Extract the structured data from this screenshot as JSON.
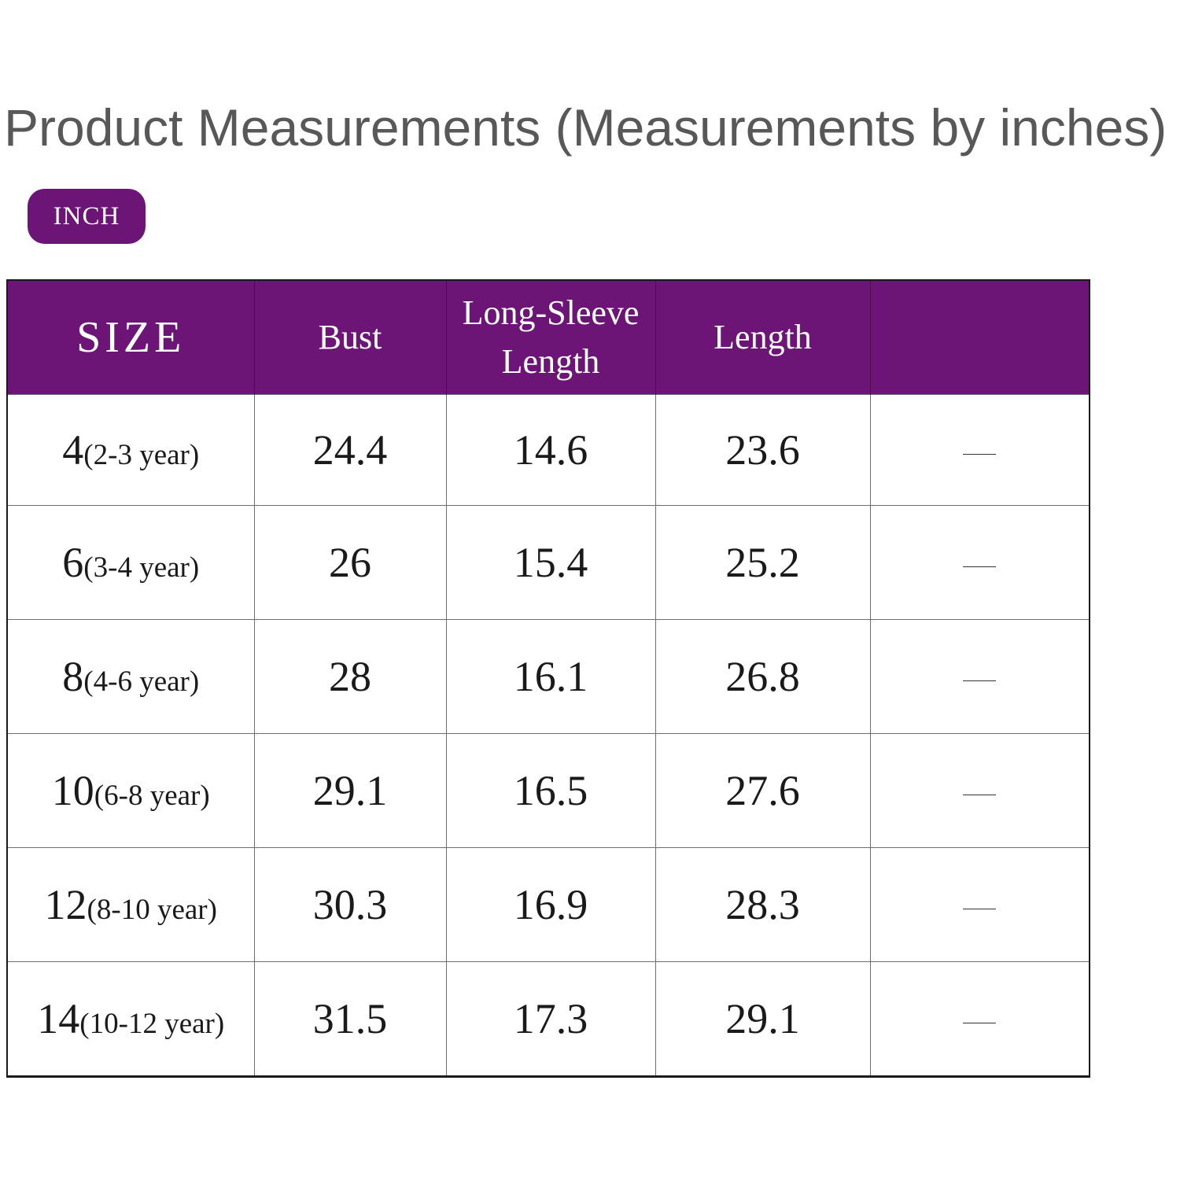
{
  "title": "Product Measurements (Measurements by inches)",
  "unit_badge": "INCH",
  "colors": {
    "header_bg": "#6c1577",
    "title_text": "#585858"
  },
  "table": {
    "headers": [
      "SIZE",
      "Bust",
      "Long-Sleeve\nLength",
      "Length",
      ""
    ],
    "rows": [
      {
        "size": "4",
        "age": "(2-3 year)",
        "bust": "24.4",
        "sleeve": "14.6",
        "length": "23.6",
        "extra": "—"
      },
      {
        "size": "6",
        "age": "(3-4 year)",
        "bust": "26",
        "sleeve": "15.4",
        "length": "25.2",
        "extra": "—"
      },
      {
        "size": "8",
        "age": "(4-6 year)",
        "bust": "28",
        "sleeve": "16.1",
        "length": "26.8",
        "extra": "—"
      },
      {
        "size": "10",
        "age": "(6-8 year)",
        "bust": "29.1",
        "sleeve": "16.5",
        "length": "27.6",
        "extra": "—"
      },
      {
        "size": "12",
        "age": "(8-10 year)",
        "bust": "30.3",
        "sleeve": "16.9",
        "length": "28.3",
        "extra": "—"
      },
      {
        "size": "14",
        "age": "(10-12 year)",
        "bust": "31.5",
        "sleeve": "17.3",
        "length": "29.1",
        "extra": "—"
      }
    ]
  }
}
